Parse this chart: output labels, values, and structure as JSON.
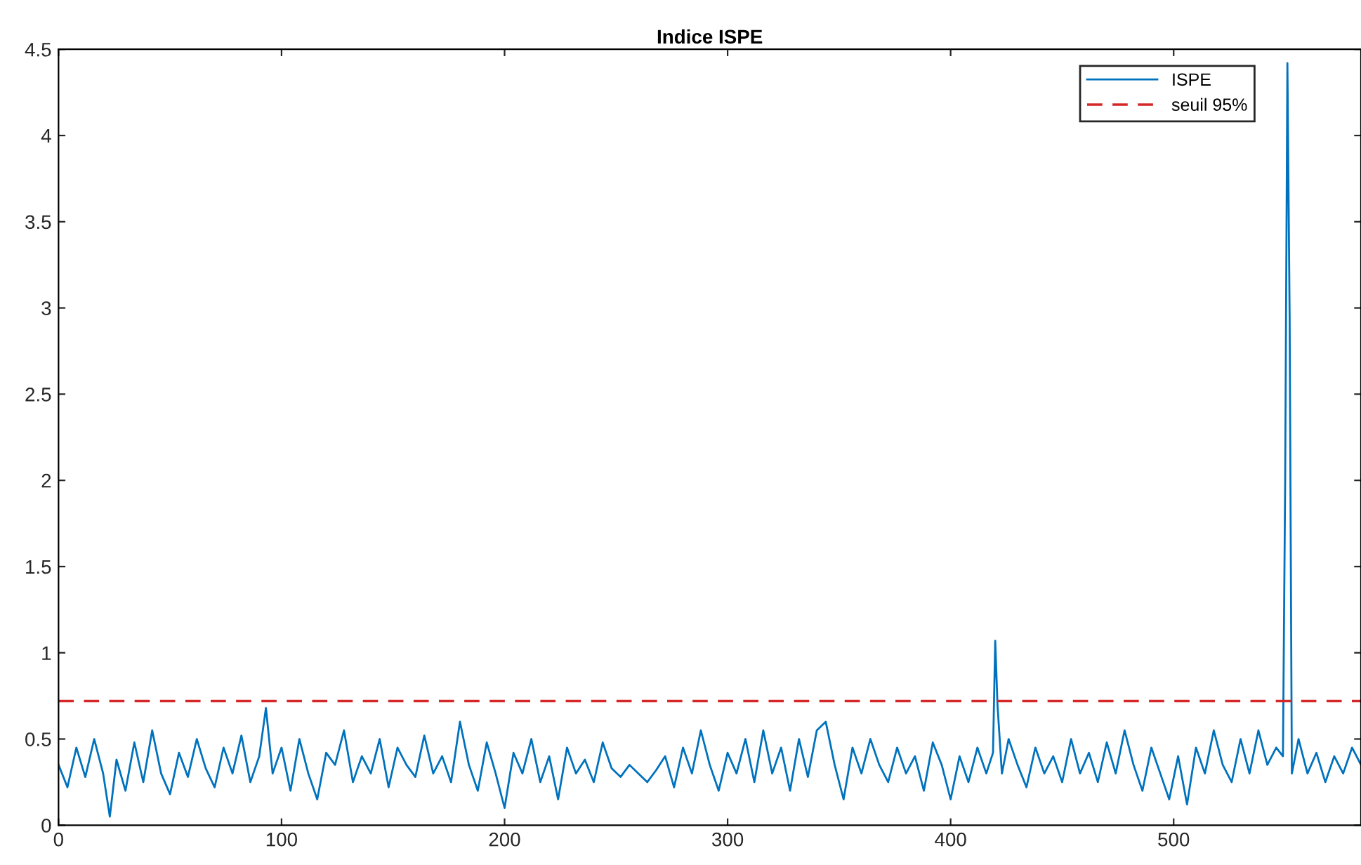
{
  "chart_data": {
    "type": "line",
    "title": "Indice ISPE",
    "x": [
      0,
      4,
      8,
      12,
      16,
      20,
      23,
      26,
      30,
      34,
      38,
      42,
      46,
      50,
      54,
      58,
      62,
      66,
      70,
      74,
      78,
      82,
      86,
      90,
      93,
      96,
      100,
      104,
      108,
      112,
      116,
      120,
      124,
      128,
      132,
      136,
      140,
      144,
      148,
      152,
      156,
      160,
      164,
      168,
      172,
      176,
      180,
      184,
      188,
      192,
      196,
      200,
      204,
      208,
      212,
      216,
      220,
      224,
      228,
      232,
      236,
      240,
      244,
      248,
      252,
      256,
      260,
      264,
      268,
      272,
      276,
      280,
      284,
      288,
      292,
      296,
      300,
      304,
      308,
      312,
      316,
      320,
      324,
      328,
      332,
      336,
      340,
      344,
      348,
      352,
      356,
      360,
      364,
      368,
      372,
      376,
      380,
      384,
      388,
      392,
      396,
      400,
      404,
      408,
      412,
      416,
      419,
      420,
      421,
      423,
      426,
      430,
      434,
      438,
      442,
      446,
      450,
      454,
      458,
      462,
      466,
      470,
      474,
      478,
      482,
      486,
      490,
      494,
      498,
      502,
      506,
      510,
      514,
      518,
      522,
      526,
      530,
      534,
      538,
      542,
      546,
      549,
      550,
      551,
      552,
      553,
      556,
      560,
      564,
      568,
      572,
      576,
      580,
      584
    ],
    "series": [
      {
        "name": "ISPE",
        "color": "#0072bd",
        "values": [
          0.35,
          0.22,
          0.45,
          0.28,
          0.5,
          0.3,
          0.05,
          0.38,
          0.2,
          0.48,
          0.25,
          0.55,
          0.3,
          0.18,
          0.42,
          0.28,
          0.5,
          0.33,
          0.22,
          0.45,
          0.3,
          0.52,
          0.25,
          0.4,
          0.68,
          0.3,
          0.45,
          0.2,
          0.5,
          0.3,
          0.15,
          0.42,
          0.35,
          0.55,
          0.25,
          0.4,
          0.3,
          0.5,
          0.22,
          0.45,
          0.35,
          0.28,
          0.52,
          0.3,
          0.4,
          0.25,
          0.6,
          0.35,
          0.2,
          0.48,
          0.3,
          0.1,
          0.42,
          0.3,
          0.5,
          0.25,
          0.4,
          0.15,
          0.45,
          0.3,
          0.38,
          0.25,
          0.48,
          0.33,
          0.28,
          0.35,
          0.3,
          0.25,
          0.32,
          0.4,
          0.22,
          0.45,
          0.3,
          0.55,
          0.35,
          0.2,
          0.42,
          0.3,
          0.5,
          0.25,
          0.55,
          0.3,
          0.45,
          0.2,
          0.5,
          0.28,
          0.55,
          0.6,
          0.35,
          0.15,
          0.45,
          0.3,
          0.5,
          0.35,
          0.25,
          0.45,
          0.3,
          0.4,
          0.2,
          0.48,
          0.35,
          0.15,
          0.4,
          0.25,
          0.45,
          0.3,
          0.42,
          1.07,
          0.7,
          0.3,
          0.5,
          0.35,
          0.22,
          0.45,
          0.3,
          0.4,
          0.25,
          0.5,
          0.3,
          0.42,
          0.25,
          0.48,
          0.3,
          0.55,
          0.35,
          0.2,
          0.45,
          0.3,
          0.15,
          0.4,
          0.12,
          0.45,
          0.3,
          0.55,
          0.35,
          0.25,
          0.5,
          0.3,
          0.55,
          0.35,
          0.45,
          0.4,
          2.0,
          4.42,
          2.95,
          0.3,
          0.5,
          0.3,
          0.42,
          0.25,
          0.4,
          0.3,
          0.45,
          0.35
        ]
      }
    ],
    "ref_lines": [
      {
        "axis": "y",
        "value": 0.72,
        "label": "seuil 95%",
        "color": "#d62728",
        "line_style": "dashed"
      }
    ],
    "xlim": [
      0,
      584
    ],
    "xticks": [
      0,
      100,
      200,
      300,
      400,
      500
    ],
    "ylim": [
      0,
      4.5
    ],
    "yticks": [
      0,
      0.5,
      1,
      1.5,
      2,
      2.5,
      3,
      3.5,
      4,
      4.5
    ],
    "legend": "top right",
    "grid": false
  }
}
